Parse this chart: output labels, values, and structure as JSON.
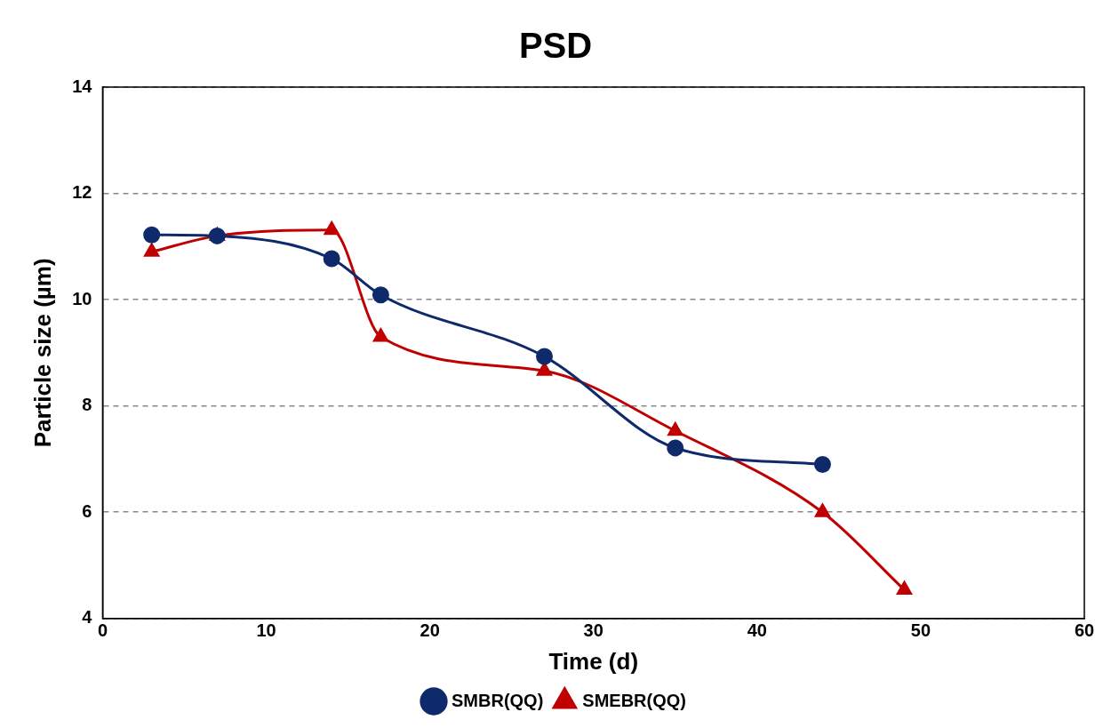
{
  "chart_data": {
    "type": "line",
    "title": "PSD",
    "xlabel": "Time (d)",
    "ylabel": "Particle size (µm)",
    "xlim": [
      0,
      60
    ],
    "xticks": [
      0,
      10,
      20,
      30,
      40,
      50,
      60
    ],
    "ylim": [
      4,
      14
    ],
    "yticks": [
      4,
      6,
      8,
      10,
      12,
      14
    ],
    "grid": "y",
    "legend": "bottom",
    "line_style": "solid",
    "series": [
      {
        "name": "SMBR(QQ)",
        "color": "#0e2a6b",
        "marker": "circle",
        "x": [
          3,
          7,
          14,
          17,
          27,
          35,
          44
        ],
        "values": [
          11.22,
          11.2,
          10.77,
          10.09,
          8.93,
          7.21,
          6.9
        ]
      },
      {
        "name": "SMEBR(QQ)",
        "color": "#c00000",
        "marker": "triangle",
        "x": [
          3,
          7,
          14,
          17,
          27,
          35,
          44,
          49
        ],
        "values": [
          10.9,
          11.2,
          11.31,
          9.3,
          8.66,
          7.53,
          6.0,
          4.54
        ]
      }
    ]
  }
}
